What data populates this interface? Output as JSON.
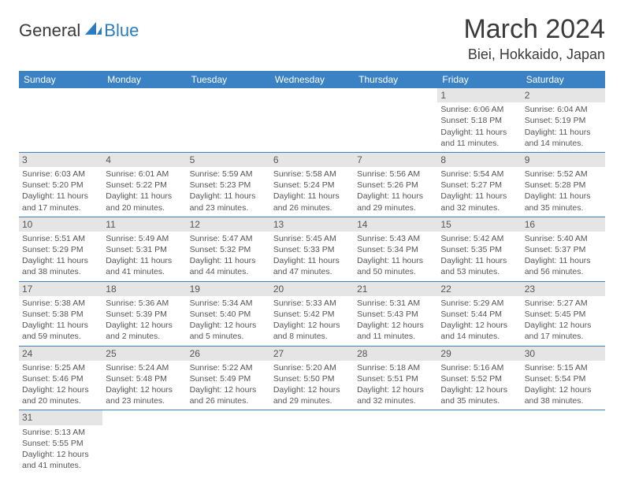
{
  "logo": {
    "general": "General",
    "blue": "Blue"
  },
  "title": "March 2024",
  "location": "Biei, Hokkaido, Japan",
  "colors": {
    "header_bg": "#3b82c4",
    "header_fg": "#ffffff",
    "daynum_bg": "#e5e5e5",
    "row_border": "#3b82c4",
    "text": "#555555",
    "logo_blue": "#2b7bbf"
  },
  "weekdays": [
    "Sunday",
    "Monday",
    "Tuesday",
    "Wednesday",
    "Thursday",
    "Friday",
    "Saturday"
  ],
  "weeks": [
    [
      {
        "day": "",
        "lines": []
      },
      {
        "day": "",
        "lines": []
      },
      {
        "day": "",
        "lines": []
      },
      {
        "day": "",
        "lines": []
      },
      {
        "day": "",
        "lines": []
      },
      {
        "day": "1",
        "lines": [
          "Sunrise: 6:06 AM",
          "Sunset: 5:18 PM",
          "Daylight: 11 hours",
          "and 11 minutes."
        ]
      },
      {
        "day": "2",
        "lines": [
          "Sunrise: 6:04 AM",
          "Sunset: 5:19 PM",
          "Daylight: 11 hours",
          "and 14 minutes."
        ]
      }
    ],
    [
      {
        "day": "3",
        "lines": [
          "Sunrise: 6:03 AM",
          "Sunset: 5:20 PM",
          "Daylight: 11 hours",
          "and 17 minutes."
        ]
      },
      {
        "day": "4",
        "lines": [
          "Sunrise: 6:01 AM",
          "Sunset: 5:22 PM",
          "Daylight: 11 hours",
          "and 20 minutes."
        ]
      },
      {
        "day": "5",
        "lines": [
          "Sunrise: 5:59 AM",
          "Sunset: 5:23 PM",
          "Daylight: 11 hours",
          "and 23 minutes."
        ]
      },
      {
        "day": "6",
        "lines": [
          "Sunrise: 5:58 AM",
          "Sunset: 5:24 PM",
          "Daylight: 11 hours",
          "and 26 minutes."
        ]
      },
      {
        "day": "7",
        "lines": [
          "Sunrise: 5:56 AM",
          "Sunset: 5:26 PM",
          "Daylight: 11 hours",
          "and 29 minutes."
        ]
      },
      {
        "day": "8",
        "lines": [
          "Sunrise: 5:54 AM",
          "Sunset: 5:27 PM",
          "Daylight: 11 hours",
          "and 32 minutes."
        ]
      },
      {
        "day": "9",
        "lines": [
          "Sunrise: 5:52 AM",
          "Sunset: 5:28 PM",
          "Daylight: 11 hours",
          "and 35 minutes."
        ]
      }
    ],
    [
      {
        "day": "10",
        "lines": [
          "Sunrise: 5:51 AM",
          "Sunset: 5:29 PM",
          "Daylight: 11 hours",
          "and 38 minutes."
        ]
      },
      {
        "day": "11",
        "lines": [
          "Sunrise: 5:49 AM",
          "Sunset: 5:31 PM",
          "Daylight: 11 hours",
          "and 41 minutes."
        ]
      },
      {
        "day": "12",
        "lines": [
          "Sunrise: 5:47 AM",
          "Sunset: 5:32 PM",
          "Daylight: 11 hours",
          "and 44 minutes."
        ]
      },
      {
        "day": "13",
        "lines": [
          "Sunrise: 5:45 AM",
          "Sunset: 5:33 PM",
          "Daylight: 11 hours",
          "and 47 minutes."
        ]
      },
      {
        "day": "14",
        "lines": [
          "Sunrise: 5:43 AM",
          "Sunset: 5:34 PM",
          "Daylight: 11 hours",
          "and 50 minutes."
        ]
      },
      {
        "day": "15",
        "lines": [
          "Sunrise: 5:42 AM",
          "Sunset: 5:35 PM",
          "Daylight: 11 hours",
          "and 53 minutes."
        ]
      },
      {
        "day": "16",
        "lines": [
          "Sunrise: 5:40 AM",
          "Sunset: 5:37 PM",
          "Daylight: 11 hours",
          "and 56 minutes."
        ]
      }
    ],
    [
      {
        "day": "17",
        "lines": [
          "Sunrise: 5:38 AM",
          "Sunset: 5:38 PM",
          "Daylight: 11 hours",
          "and 59 minutes."
        ]
      },
      {
        "day": "18",
        "lines": [
          "Sunrise: 5:36 AM",
          "Sunset: 5:39 PM",
          "Daylight: 12 hours",
          "and 2 minutes."
        ]
      },
      {
        "day": "19",
        "lines": [
          "Sunrise: 5:34 AM",
          "Sunset: 5:40 PM",
          "Daylight: 12 hours",
          "and 5 minutes."
        ]
      },
      {
        "day": "20",
        "lines": [
          "Sunrise: 5:33 AM",
          "Sunset: 5:42 PM",
          "Daylight: 12 hours",
          "and 8 minutes."
        ]
      },
      {
        "day": "21",
        "lines": [
          "Sunrise: 5:31 AM",
          "Sunset: 5:43 PM",
          "Daylight: 12 hours",
          "and 11 minutes."
        ]
      },
      {
        "day": "22",
        "lines": [
          "Sunrise: 5:29 AM",
          "Sunset: 5:44 PM",
          "Daylight: 12 hours",
          "and 14 minutes."
        ]
      },
      {
        "day": "23",
        "lines": [
          "Sunrise: 5:27 AM",
          "Sunset: 5:45 PM",
          "Daylight: 12 hours",
          "and 17 minutes."
        ]
      }
    ],
    [
      {
        "day": "24",
        "lines": [
          "Sunrise: 5:25 AM",
          "Sunset: 5:46 PM",
          "Daylight: 12 hours",
          "and 20 minutes."
        ]
      },
      {
        "day": "25",
        "lines": [
          "Sunrise: 5:24 AM",
          "Sunset: 5:48 PM",
          "Daylight: 12 hours",
          "and 23 minutes."
        ]
      },
      {
        "day": "26",
        "lines": [
          "Sunrise: 5:22 AM",
          "Sunset: 5:49 PM",
          "Daylight: 12 hours",
          "and 26 minutes."
        ]
      },
      {
        "day": "27",
        "lines": [
          "Sunrise: 5:20 AM",
          "Sunset: 5:50 PM",
          "Daylight: 12 hours",
          "and 29 minutes."
        ]
      },
      {
        "day": "28",
        "lines": [
          "Sunrise: 5:18 AM",
          "Sunset: 5:51 PM",
          "Daylight: 12 hours",
          "and 32 minutes."
        ]
      },
      {
        "day": "29",
        "lines": [
          "Sunrise: 5:16 AM",
          "Sunset: 5:52 PM",
          "Daylight: 12 hours",
          "and 35 minutes."
        ]
      },
      {
        "day": "30",
        "lines": [
          "Sunrise: 5:15 AM",
          "Sunset: 5:54 PM",
          "Daylight: 12 hours",
          "and 38 minutes."
        ]
      }
    ],
    [
      {
        "day": "31",
        "lines": [
          "Sunrise: 5:13 AM",
          "Sunset: 5:55 PM",
          "Daylight: 12 hours",
          "and 41 minutes."
        ]
      },
      {
        "day": "",
        "lines": []
      },
      {
        "day": "",
        "lines": []
      },
      {
        "day": "",
        "lines": []
      },
      {
        "day": "",
        "lines": []
      },
      {
        "day": "",
        "lines": []
      },
      {
        "day": "",
        "lines": []
      }
    ]
  ]
}
